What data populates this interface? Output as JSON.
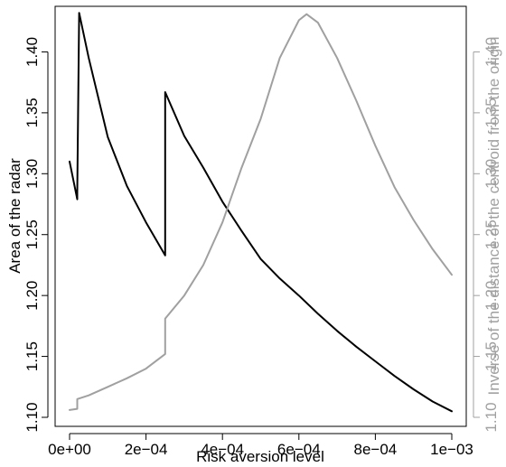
{
  "chart_data": {
    "type": "line",
    "xlabel": "Risk aversion level",
    "ylabel": "Area of the radar",
    "y2label": "Inverse of the distance of the centroid from the origin",
    "xlim": [
      0,
      0.001
    ],
    "ylim": [
      1.1,
      1.43
    ],
    "y2lim": [
      1.1,
      1.43
    ],
    "x_ticks": [
      "0e+00",
      "2e−04",
      "4e−04",
      "6e−04",
      "8e−04",
      "1e−03"
    ],
    "y_ticks": [
      "1.10",
      "1.15",
      "1.20",
      "1.25",
      "1.30",
      "1.35",
      "1.40"
    ],
    "y2_ticks": [
      "1.10",
      "1.15",
      "1.20",
      "1.25",
      "1.30",
      "1.35",
      "1.40"
    ],
    "grid": false,
    "colors": {
      "area": "#000000",
      "inverse": "#a0a0a0",
      "axis": "#000000"
    },
    "series": [
      {
        "axis": "left",
        "color": "#000000",
        "points": [
          [
            0,
            1.31
          ],
          [
            2e-05,
            1.279
          ],
          [
            2e-05,
            1.285
          ],
          [
            2.5e-05,
            1.432
          ],
          [
            5e-05,
            1.395
          ],
          [
            0.0001,
            1.33
          ],
          [
            0.00015,
            1.29
          ],
          [
            0.0002,
            1.26
          ],
          [
            0.00025,
            1.233
          ],
          [
            0.00025,
            1.367
          ],
          [
            0.0003,
            1.331
          ],
          [
            0.00035,
            1.305
          ],
          [
            0.0004,
            1.277
          ],
          [
            0.00045,
            1.253
          ],
          [
            0.0005,
            1.23
          ],
          [
            0.00055,
            1.214
          ],
          [
            0.0006,
            1.2
          ],
          [
            0.00065,
            1.185
          ],
          [
            0.0007,
            1.171
          ],
          [
            0.00075,
            1.158
          ],
          [
            0.0008,
            1.146
          ],
          [
            0.00085,
            1.134
          ],
          [
            0.0009,
            1.123
          ],
          [
            0.00095,
            1.113
          ],
          [
            0.001,
            1.105
          ]
        ]
      },
      {
        "axis": "right",
        "color": "#a0a0a0",
        "points": [
          [
            0,
            1.106
          ],
          [
            2e-05,
            1.107
          ],
          [
            2e-05,
            1.115
          ],
          [
            5e-05,
            1.118
          ],
          [
            0.0001,
            1.125
          ],
          [
            0.00015,
            1.132
          ],
          [
            0.0002,
            1.14
          ],
          [
            0.00025,
            1.152
          ],
          [
            0.00025,
            1.181
          ],
          [
            0.0003,
            1.2
          ],
          [
            0.00035,
            1.225
          ],
          [
            0.0004,
            1.26
          ],
          [
            0.00045,
            1.305
          ],
          [
            0.0005,
            1.345
          ],
          [
            0.00055,
            1.395
          ],
          [
            0.0006,
            1.426
          ],
          [
            0.00062,
            1.431
          ],
          [
            0.00065,
            1.424
          ],
          [
            0.0007,
            1.395
          ],
          [
            0.00075,
            1.36
          ],
          [
            0.0008,
            1.323
          ],
          [
            0.00085,
            1.289
          ],
          [
            0.0009,
            1.262
          ],
          [
            0.00095,
            1.238
          ],
          [
            0.001,
            1.217
          ]
        ]
      }
    ]
  }
}
